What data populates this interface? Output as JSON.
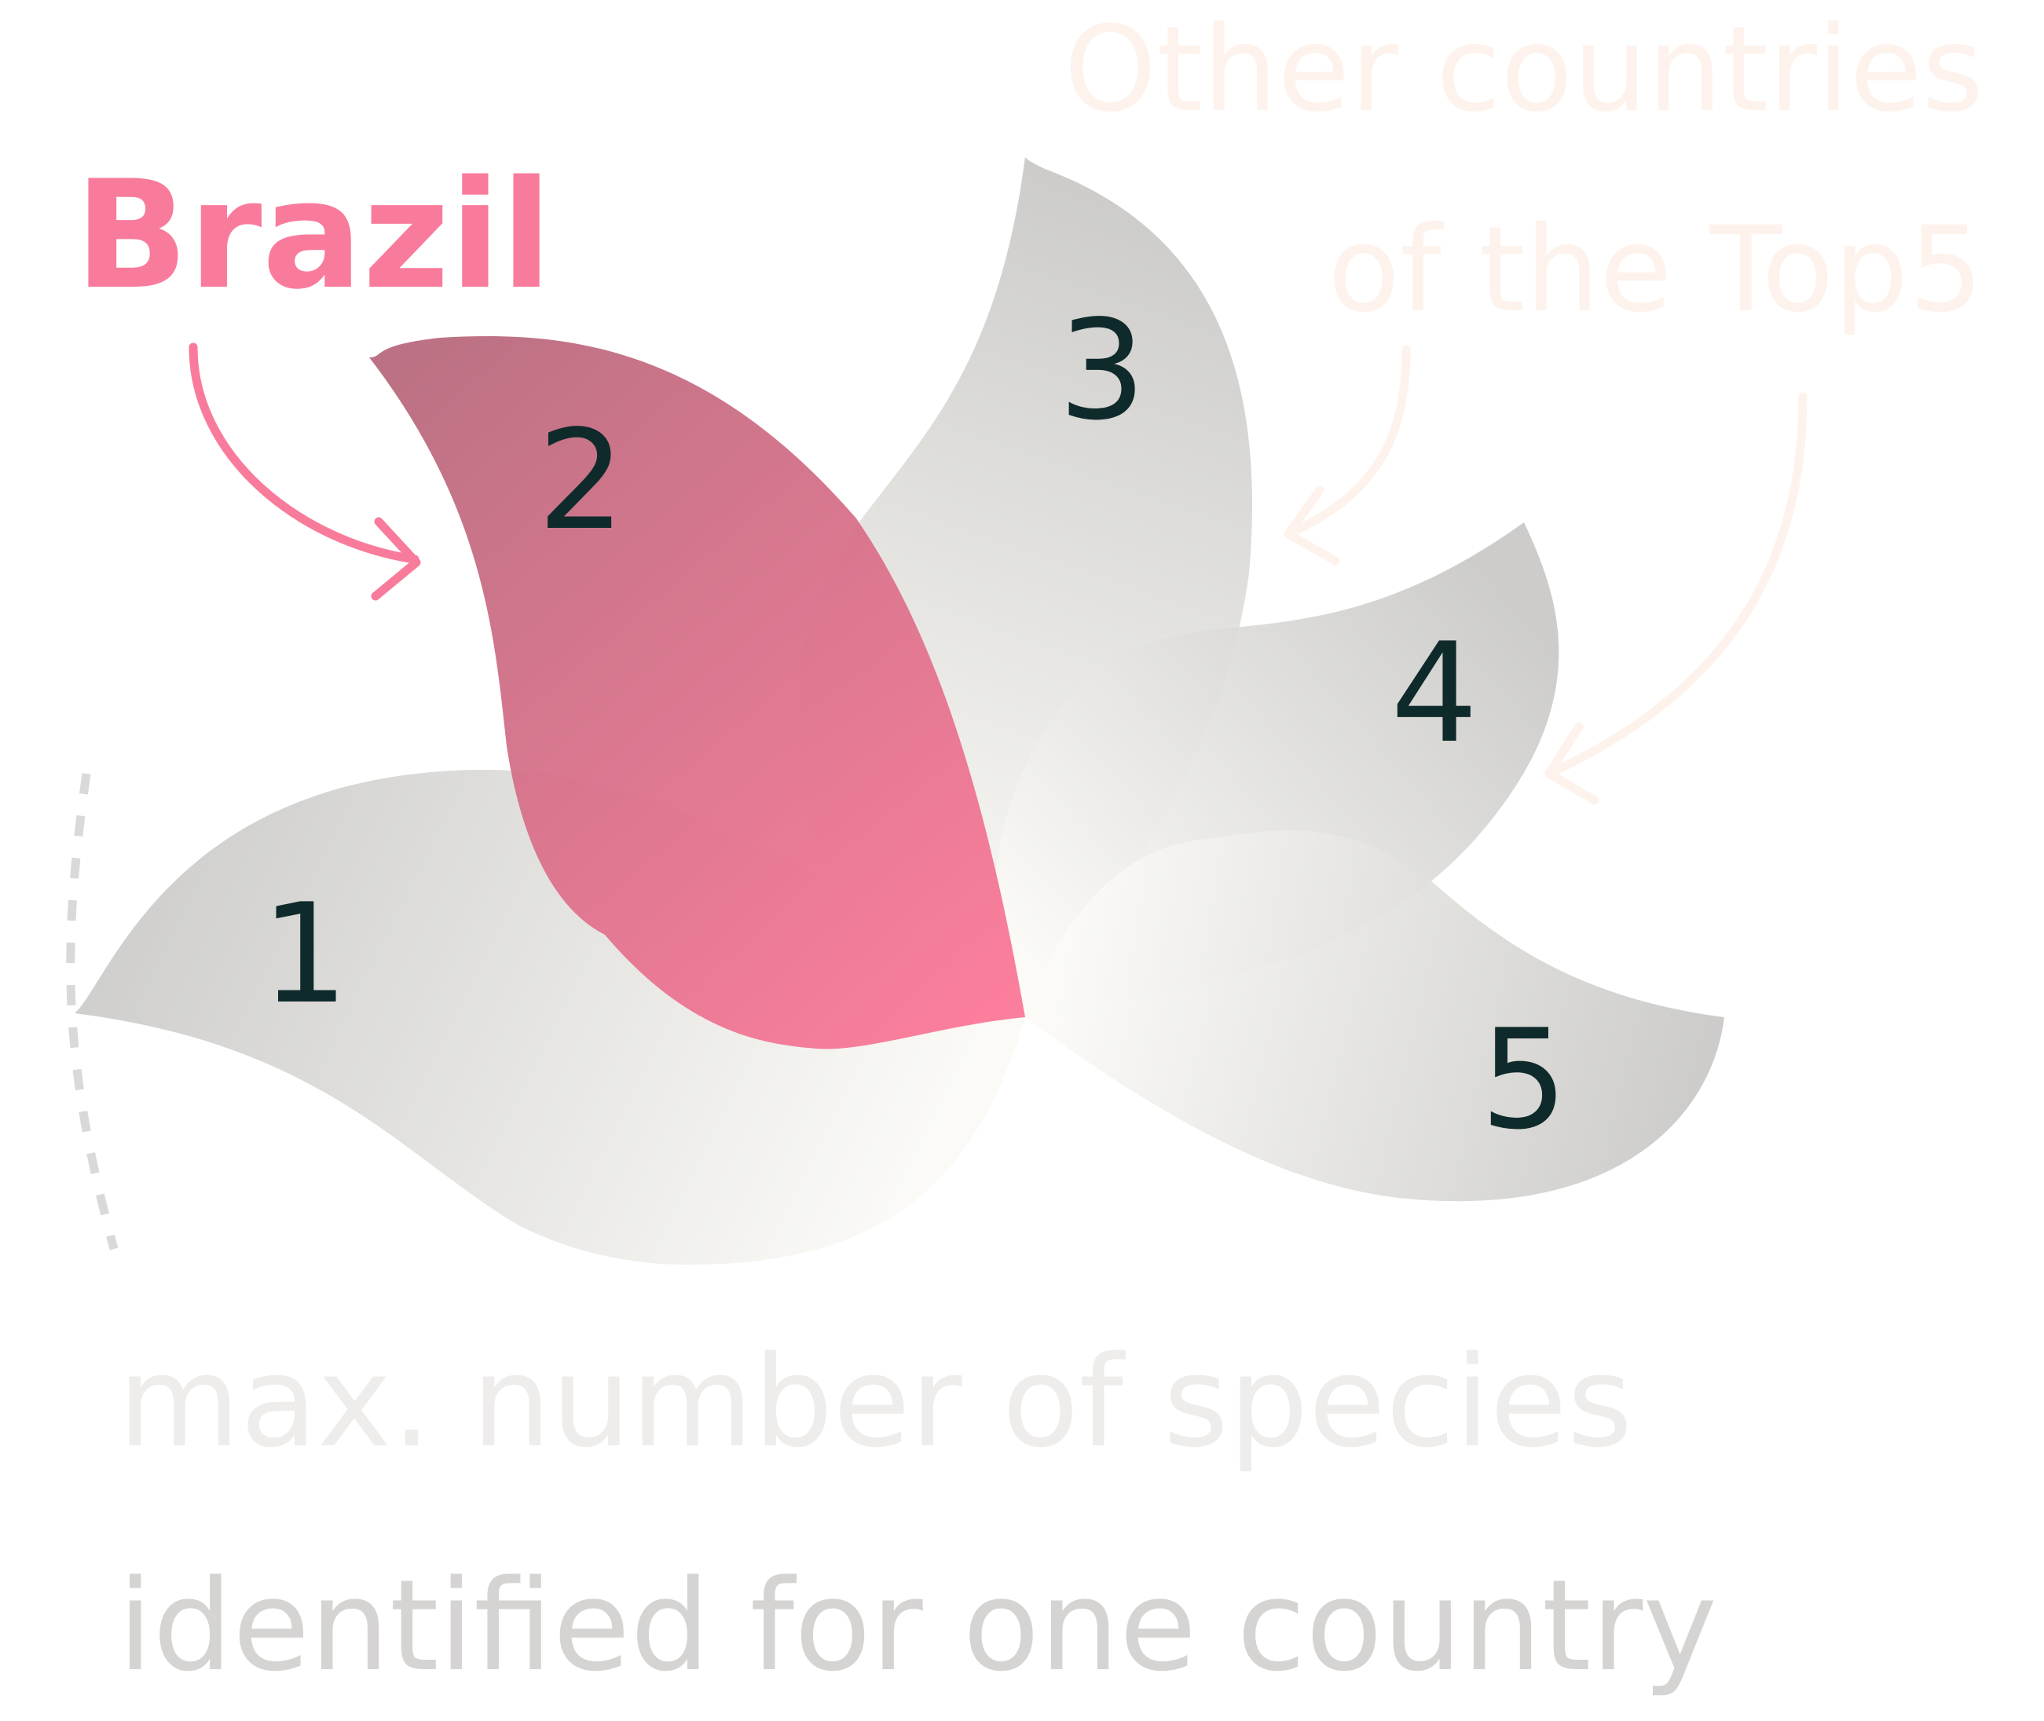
{
  "highlight": {
    "label": "Brazil",
    "rank": "2",
    "color": "#f97b9b"
  },
  "others": {
    "label_line1": "Other countries",
    "label_line2": "of the Top5",
    "color": "#fdf3ec"
  },
  "petals": [
    {
      "rank": "1",
      "highlighted": false
    },
    {
      "rank": "2",
      "highlighted": true
    },
    {
      "rank": "3",
      "highlighted": false
    },
    {
      "rank": "4",
      "highlighted": false
    },
    {
      "rank": "5",
      "highlighted": false
    }
  ],
  "caption": {
    "line1": "max. number of species",
    "line2": "identified for one country"
  },
  "colors": {
    "petal_grey": "#c9c8c6",
    "petal_light": "#fbfaf6",
    "rank_text": "#0f2a2a",
    "caption_line1": "#efedeb",
    "caption_line2": "#d5d4d2",
    "dotted_scale": "#dad9d7"
  }
}
